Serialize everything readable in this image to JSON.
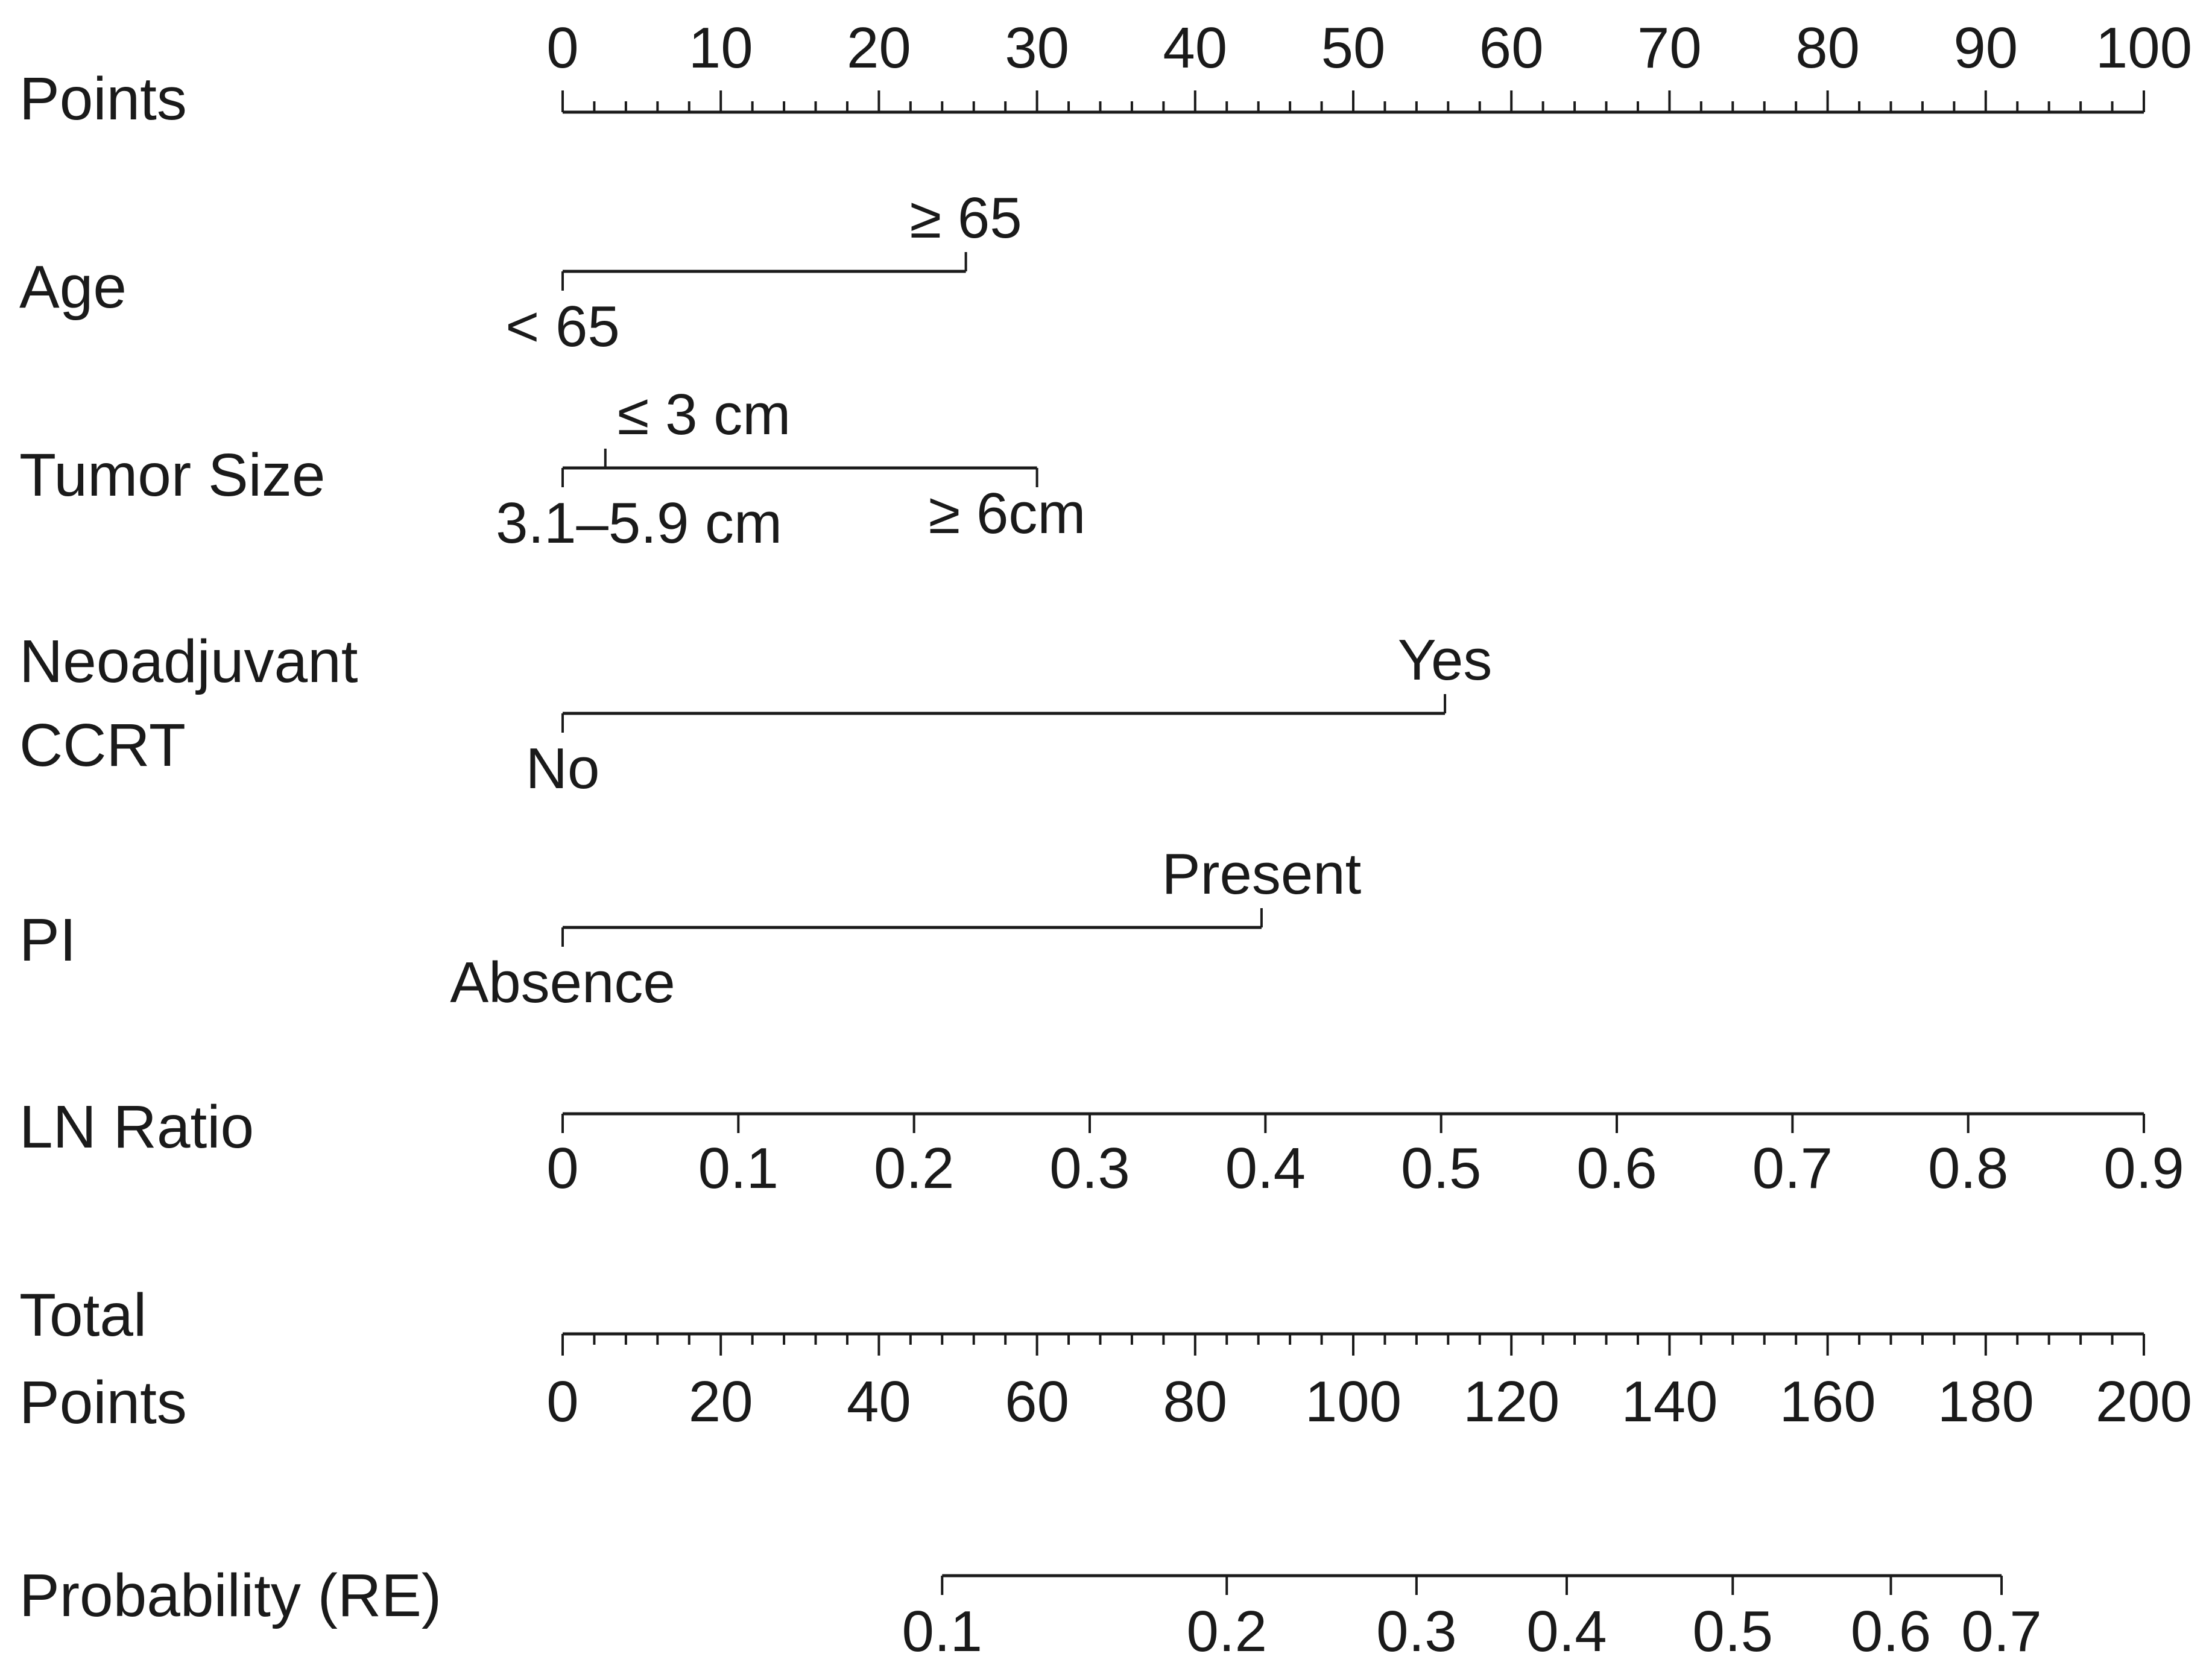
{
  "chart_data": {
    "type": "nomogram",
    "title": "",
    "rows": [
      {
        "id": "points",
        "label": [
          "Points"
        ],
        "kind": "points",
        "range": [
          0,
          100
        ],
        "major_ticks": [
          0,
          10,
          20,
          30,
          40,
          50,
          60,
          70,
          80,
          90,
          100
        ],
        "minor_step": 2,
        "tick_labels": [
          "0",
          "10",
          "20",
          "30",
          "40",
          "50",
          "60",
          "70",
          "80",
          "90",
          "100"
        ]
      },
      {
        "id": "age",
        "label": [
          "Age"
        ],
        "kind": "categorical",
        "categories": [
          {
            "name": "< 65",
            "points": 0,
            "side": "below"
          },
          {
            "name": "≥ 65",
            "points": 25.5,
            "side": "above"
          }
        ]
      },
      {
        "id": "tumor_size",
        "label": [
          "Tumor Size"
        ],
        "kind": "categorical",
        "categories": [
          {
            "name": "3.1–5.9 cm",
            "points": 0,
            "side": "below"
          },
          {
            "name": "≤ 3 cm",
            "points": 2.7,
            "side": "above"
          },
          {
            "name": "≥ 6cm",
            "points": 30,
            "side": "below"
          }
        ]
      },
      {
        "id": "neoadjuvant_ccrt",
        "label": [
          "Neoadjuvant",
          "CCRT"
        ],
        "kind": "categorical",
        "categories": [
          {
            "name": "No",
            "points": 0,
            "side": "below"
          },
          {
            "name": "Yes",
            "points": 55.8,
            "side": "above"
          }
        ]
      },
      {
        "id": "pi",
        "label": [
          "PI"
        ],
        "kind": "categorical",
        "categories": [
          {
            "name": "Absence",
            "points": 0,
            "side": "below"
          },
          {
            "name": "Present",
            "points": 44.2,
            "side": "above"
          }
        ]
      },
      {
        "id": "ln_ratio",
        "label": [
          "LN Ratio"
        ],
        "kind": "continuous",
        "range": [
          0,
          0.9
        ],
        "points_range": [
          0,
          100
        ],
        "ticks": [
          0,
          0.1,
          0.2,
          0.3,
          0.4,
          0.5,
          0.6,
          0.7,
          0.8,
          0.9
        ],
        "tick_labels": [
          "0",
          "0.1",
          "0.2",
          "0.3",
          "0.4",
          "0.5",
          "0.6",
          "0.7",
          "0.8",
          "0.9"
        ]
      },
      {
        "id": "total_points",
        "label": [
          "Total",
          "Points"
        ],
        "kind": "total",
        "range": [
          0,
          200
        ],
        "major_ticks": [
          0,
          20,
          40,
          60,
          80,
          100,
          120,
          140,
          160,
          180,
          200
        ],
        "minor_step": 4,
        "tick_labels": [
          "0",
          "20",
          "40",
          "60",
          "80",
          "100",
          "120",
          "140",
          "160",
          "180",
          "200"
        ]
      },
      {
        "id": "probability",
        "label": [
          "Probability (RE)"
        ],
        "kind": "probability",
        "ticks": [
          {
            "value": 0.1,
            "total_points": 48,
            "label": "0.1"
          },
          {
            "value": 0.2,
            "total_points": 84,
            "label": "0.2"
          },
          {
            "value": 0.3,
            "total_points": 108,
            "label": "0.3"
          },
          {
            "value": 0.4,
            "total_points": 127,
            "label": "0.4"
          },
          {
            "value": 0.5,
            "total_points": 148,
            "label": "0.5"
          },
          {
            "value": 0.6,
            "total_points": 168,
            "label": "0.6"
          },
          {
            "value": 0.7,
            "total_points": 182,
            "label": "0.7"
          }
        ]
      }
    ]
  }
}
